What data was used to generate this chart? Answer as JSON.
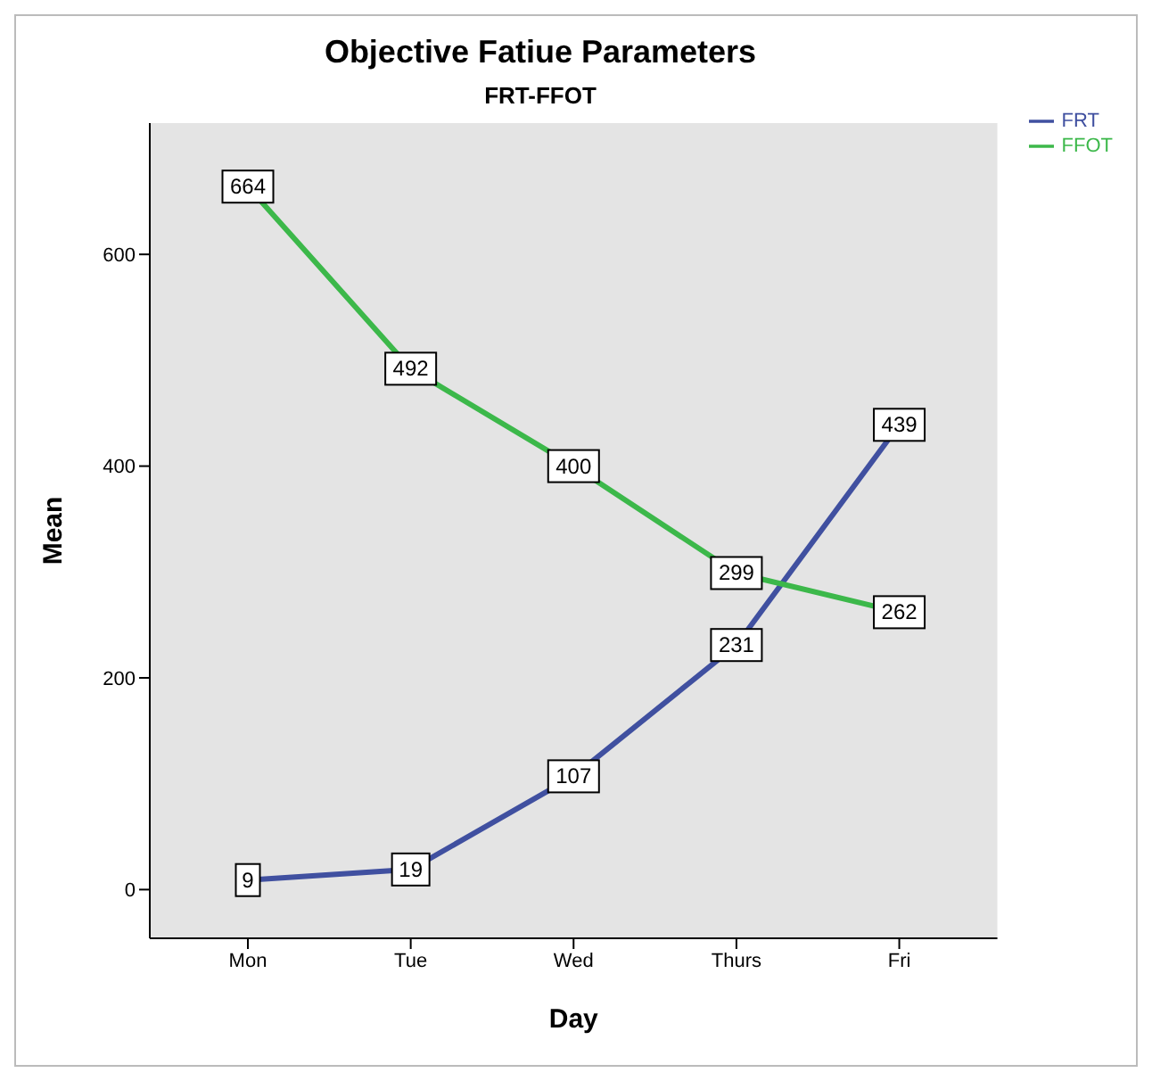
{
  "chart_data": {
    "type": "line",
    "title": "Objective Fatiue Parameters",
    "subtitle": "FRT-FFOT",
    "xlabel": "Day",
    "ylabel": "Mean",
    "categories": [
      "Mon",
      "Tue",
      "Wed",
      "Thurs",
      "Fri"
    ],
    "series": [
      {
        "name": "FRT",
        "color": "#4050a0",
        "values": [
          9,
          19,
          107,
          231,
          439
        ]
      },
      {
        "name": "FFOT",
        "color": "#3cb84a",
        "values": [
          664,
          492,
          400,
          299,
          262
        ]
      }
    ],
    "ylim": [
      -46,
      724
    ],
    "yticks": [
      0,
      200,
      400,
      600
    ],
    "legend": "top right",
    "data_labels": true,
    "marker": "square"
  }
}
